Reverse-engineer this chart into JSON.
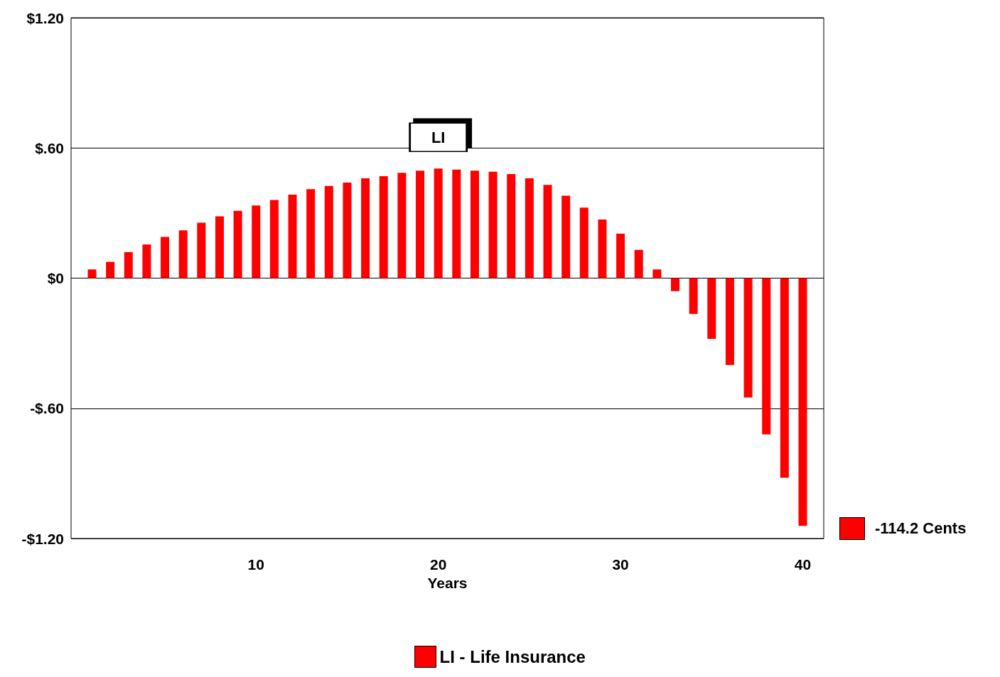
{
  "chart_data": {
    "type": "bar",
    "xlabel": "Years",
    "x": [
      1,
      2,
      3,
      4,
      5,
      6,
      7,
      8,
      9,
      10,
      11,
      12,
      13,
      14,
      15,
      16,
      17,
      18,
      19,
      20,
      21,
      22,
      23,
      24,
      25,
      26,
      27,
      28,
      29,
      30,
      31,
      32,
      33,
      34,
      35,
      36,
      37,
      38,
      39,
      40
    ],
    "series": [
      {
        "name": "LI - Life Insurance",
        "color": "#ff0000",
        "values": [
          0.04,
          0.075,
          0.12,
          0.155,
          0.19,
          0.22,
          0.255,
          0.285,
          0.31,
          0.335,
          0.36,
          0.385,
          0.41,
          0.425,
          0.44,
          0.46,
          0.47,
          0.485,
          0.495,
          0.505,
          0.5,
          0.495,
          0.49,
          0.48,
          0.46,
          0.43,
          0.38,
          0.325,
          0.27,
          0.205,
          0.13,
          0.04,
          -0.06,
          -0.165,
          -0.28,
          -0.4,
          -0.55,
          -0.72,
          -0.92,
          -1.142
        ]
      }
    ],
    "xlim": [
      -0.15,
      41.15
    ],
    "xticks": [
      10,
      20,
      30,
      40
    ],
    "ylim": [
      -1.2,
      1.2
    ],
    "yticks": [
      {
        "value": -1.2,
        "label": "-$1.20"
      },
      {
        "value": -0.6,
        "label": "-$.60"
      },
      {
        "value": 0,
        "label": "$0"
      },
      {
        "value": 0.6,
        "label": "$.60"
      },
      {
        "value": 1.2,
        "label": "$1.20"
      }
    ],
    "grid": "y",
    "legend": "bottom",
    "annotations": [
      {
        "text": "LI",
        "x": 20,
        "y": 0.505
      },
      "-114.2 Cents"
    ]
  }
}
